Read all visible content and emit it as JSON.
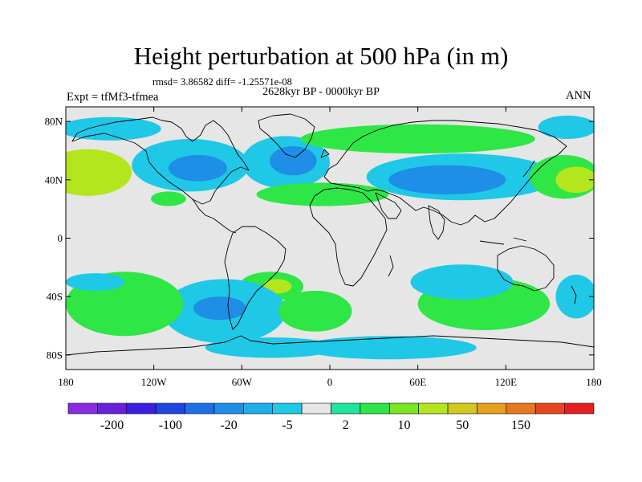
{
  "title": "Height perturbation at 500 hPa (in m)",
  "stats": "rmsd= 3.86582 diff= -1.25571e-08",
  "period": "2628kyr BP - 0000kyr BP",
  "experiment": "Expt = tfMf3-tfmea",
  "season": "ANN",
  "lat_labels": [
    {
      "text": "80N",
      "lat": 80
    },
    {
      "text": "40N",
      "lat": 40
    },
    {
      "text": "0",
      "lat": 0
    },
    {
      "text": "40S",
      "lat": -40
    },
    {
      "text": "80S",
      "lat": -80
    }
  ],
  "lon_labels": [
    {
      "text": "180",
      "lon": -180
    },
    {
      "text": "120W",
      "lon": -120
    },
    {
      "text": "60W",
      "lon": -60
    },
    {
      "text": "0",
      "lon": 0
    },
    {
      "text": "60E",
      "lon": 60
    },
    {
      "text": "120E",
      "lon": 120
    },
    {
      "text": "180",
      "lon": 180
    }
  ],
  "colorbar": {
    "colors": [
      "#8a2be2",
      "#6a1fd9",
      "#3a1fe0",
      "#1e46e0",
      "#1e6ee6",
      "#1e8ee6",
      "#1eaee8",
      "#1ec8e6",
      "#e6e6e6",
      "#1ee69e",
      "#2ee646",
      "#7ae61e",
      "#b4e61e",
      "#d2c81e",
      "#e6a01e",
      "#e6781e",
      "#e6461e",
      "#e61e1e"
    ],
    "labels": [
      {
        "text": "-200",
        "index": 1
      },
      {
        "text": "-100",
        "index": 3
      },
      {
        "text": "-20",
        "index": 5
      },
      {
        "text": "-5",
        "index": 7
      },
      {
        "text": "2",
        "index": 9
      },
      {
        "text": "10",
        "index": 11
      },
      {
        "text": "50",
        "index": 13
      },
      {
        "text": "150",
        "index": 15
      }
    ]
  },
  "anomalies": [
    {
      "lon": -165,
      "lat": 45,
      "rx": 30,
      "ry": 16,
      "level": 2
    },
    {
      "lon": -95,
      "lat": 50,
      "rx": 40,
      "ry": 18,
      "level": -1
    },
    {
      "lon": -90,
      "lat": 48,
      "rx": 20,
      "ry": 9,
      "level": -2
    },
    {
      "lon": -30,
      "lat": 52,
      "rx": 30,
      "ry": 18,
      "level": -1
    },
    {
      "lon": -25,
      "lat": 53,
      "rx": 16,
      "ry": 10,
      "level": -2
    },
    {
      "lon": 90,
      "lat": 42,
      "rx": 65,
      "ry": 16,
      "level": -1
    },
    {
      "lon": 80,
      "lat": 40,
      "rx": 40,
      "ry": 10,
      "level": -2
    },
    {
      "lon": 160,
      "lat": 42,
      "rx": 24,
      "ry": 15,
      "level": 1
    },
    {
      "lon": 168,
      "lat": 40,
      "rx": 14,
      "ry": 9,
      "level": 2
    },
    {
      "lon": 60,
      "lat": 68,
      "rx": 80,
      "ry": 10,
      "level": 1
    },
    {
      "lon": 162,
      "lat": 76,
      "rx": 20,
      "ry": 8,
      "level": -1
    },
    {
      "lon": -150,
      "lat": 75,
      "rx": 35,
      "ry": 8,
      "level": -1
    },
    {
      "lon": -5,
      "lat": 30,
      "rx": 45,
      "ry": 8,
      "level": 1
    },
    {
      "lon": -110,
      "lat": 27,
      "rx": 12,
      "ry": 5,
      "level": 1
    },
    {
      "lon": -40,
      "lat": -33,
      "rx": 22,
      "ry": 10,
      "level": 1
    },
    {
      "lon": -36,
      "lat": -33,
      "rx": 10,
      "ry": 5,
      "level": 2
    },
    {
      "lon": -72,
      "lat": -50,
      "rx": 42,
      "ry": 22,
      "level": -1
    },
    {
      "lon": -75,
      "lat": -48,
      "rx": 18,
      "ry": 8,
      "level": -2
    },
    {
      "lon": -140,
      "lat": -45,
      "rx": 40,
      "ry": 22,
      "level": 1
    },
    {
      "lon": -160,
      "lat": -30,
      "rx": 20,
      "ry": 6,
      "level": -1
    },
    {
      "lon": 105,
      "lat": -45,
      "rx": 45,
      "ry": 18,
      "level": 1
    },
    {
      "lon": 90,
      "lat": -30,
      "rx": 35,
      "ry": 12,
      "level": -1
    },
    {
      "lon": 40,
      "lat": -75,
      "rx": 60,
      "ry": 8,
      "level": -1
    },
    {
      "lon": -40,
      "lat": -75,
      "rx": 45,
      "ry": 7,
      "level": -1
    },
    {
      "lon": 168,
      "lat": -40,
      "rx": 14,
      "ry": 15,
      "level": -1
    },
    {
      "lon": -10,
      "lat": -50,
      "rx": 25,
      "ry": 14,
      "level": 1
    }
  ]
}
